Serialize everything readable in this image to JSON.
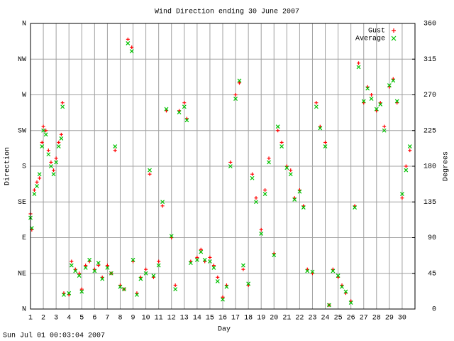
{
  "chart_data": {
    "type": "scatter",
    "title": "Wind Direction ending 30 June 2007",
    "x_label": "Day",
    "y_label": "Direction",
    "y2_label": "Degrees",
    "footer": "Sun Jul 01 00:03:04 2007",
    "xlim": [
      1,
      31
    ],
    "xticks": [
      1,
      2,
      3,
      4,
      5,
      6,
      7,
      8,
      9,
      10,
      11,
      12,
      13,
      14,
      15,
      16,
      17,
      18,
      19,
      20,
      21,
      22,
      23,
      24,
      25,
      26,
      27,
      28,
      29,
      30
    ],
    "ylim": [
      0,
      360
    ],
    "yticks": [
      {
        "value": 0,
        "label": "N"
      },
      {
        "value": 45,
        "label": "NE"
      },
      {
        "value": 90,
        "label": "E"
      },
      {
        "value": 135,
        "label": "SE"
      },
      {
        "value": 180,
        "label": "S"
      },
      {
        "value": 225,
        "label": "SW"
      },
      {
        "value": 270,
        "label": "W"
      },
      {
        "value": 315,
        "label": "NW"
      },
      {
        "value": 360,
        "label": "N"
      }
    ],
    "y2lim": [
      0,
      360
    ],
    "y2ticks": [
      0,
      45,
      90,
      135,
      180,
      225,
      270,
      315,
      360
    ],
    "grid": true,
    "legend": "top-right",
    "x": [
      1.0,
      1.1,
      1.3,
      1.5,
      1.7,
      1.9,
      2.0,
      2.2,
      2.4,
      2.6,
      2.8,
      3.0,
      3.2,
      3.4,
      3.5,
      3.6,
      4.0,
      4.2,
      4.5,
      4.8,
      5.0,
      5.3,
      5.6,
      6.0,
      6.3,
      6.6,
      7.0,
      7.3,
      7.6,
      8.0,
      8.3,
      8.6,
      8.9,
      9.0,
      9.3,
      9.6,
      10.0,
      10.3,
      10.6,
      11.0,
      11.3,
      11.6,
      12.0,
      12.3,
      12.6,
      13.0,
      13.2,
      13.5,
      14.0,
      14.3,
      14.6,
      15.0,
      15.3,
      15.6,
      16.0,
      16.3,
      16.6,
      17.0,
      17.3,
      17.6,
      18.0,
      18.3,
      18.6,
      19.0,
      19.3,
      19.6,
      20.0,
      20.3,
      20.6,
      21.0,
      21.3,
      21.6,
      22.0,
      22.3,
      22.6,
      23.0,
      23.3,
      23.6,
      24.0,
      24.3,
      24.6,
      25.0,
      25.3,
      25.6,
      26.0,
      26.3,
      26.6,
      27.0,
      27.3,
      27.6,
      28.0,
      28.3,
      28.6,
      29.0,
      29.3,
      29.6,
      30.0,
      30.3,
      30.6
    ],
    "series": [
      {
        "name": "Gust",
        "color": "#ff0000",
        "marker": "+",
        "values": [
          120,
          100,
          150,
          160,
          165,
          210,
          230,
          225,
          200,
          185,
          175,
          190,
          210,
          220,
          260,
          20,
          18,
          60,
          50,
          45,
          25,
          55,
          60,
          50,
          55,
          40,
          55,
          45,
          200,
          30,
          25,
          340,
          330,
          60,
          20,
          40,
          50,
          170,
          40,
          60,
          130,
          250,
          90,
          30,
          250,
          260,
          240,
          60,
          65,
          75,
          60,
          65,
          55,
          40,
          15,
          30,
          185,
          270,
          285,
          50,
          30,
          170,
          140,
          100,
          150,
          190,
          70,
          225,
          210,
          180,
          175,
          140,
          150,
          130,
          50,
          45,
          260,
          230,
          210,
          5,
          50,
          40,
          30,
          20,
          10,
          130,
          310,
          260,
          280,
          270,
          250,
          260,
          230,
          280,
          290,
          260,
          140,
          180,
          200
        ]
      },
      {
        "name": "Average",
        "color": "#00c000",
        "marker": "x",
        "values": [
          115,
          102,
          145,
          155,
          170,
          205,
          225,
          220,
          195,
          180,
          170,
          185,
          205,
          215,
          255,
          18,
          20,
          55,
          48,
          42,
          22,
          52,
          62,
          48,
          58,
          38,
          52,
          45,
          205,
          28,
          25,
          335,
          325,
          62,
          18,
          38,
          45,
          175,
          42,
          55,
          135,
          252,
          92,
          25,
          248,
          255,
          238,
          58,
          62,
          72,
          62,
          60,
          52,
          35,
          12,
          28,
          180,
          265,
          288,
          55,
          32,
          165,
          135,
          95,
          145,
          185,
          68,
          230,
          205,
          178,
          170,
          138,
          148,
          128,
          48,
          47,
          255,
          228,
          205,
          5,
          48,
          42,
          28,
          22,
          8,
          128,
          305,
          262,
          278,
          265,
          252,
          258,
          225,
          282,
          288,
          262,
          145,
          175,
          205
        ]
      }
    ]
  }
}
